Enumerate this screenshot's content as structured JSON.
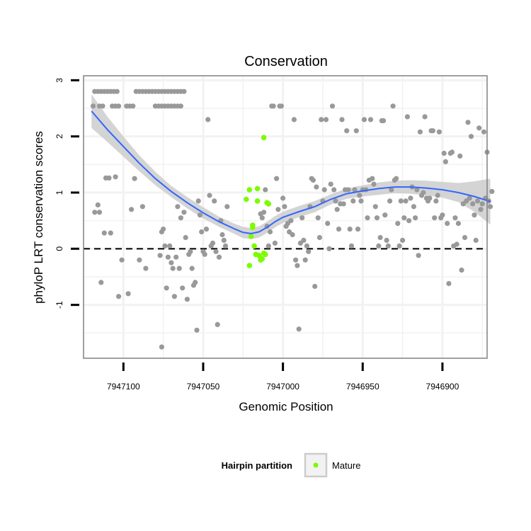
{
  "chart_data": {
    "type": "scatter",
    "title": "Conservation",
    "xlabel": "Genomic Position",
    "ylabel": "phyloP LRT conservation scores",
    "x_reversed": true,
    "xlim": [
      7947125,
      7946872
    ],
    "ylim": [
      -1.95,
      3.08
    ],
    "x_ticks": [
      7947100,
      7947050,
      7947000,
      7946950,
      7946900
    ],
    "x_tick_labels": [
      "7947100",
      "7947050",
      "7947000",
      "7946950",
      "7946900"
    ],
    "y_ticks": [
      -1,
      0,
      1,
      2,
      3
    ],
    "y_tick_labels": [
      "-1",
      "0",
      "1",
      "2",
      "3"
    ],
    "reference_line": {
      "y": 0,
      "style": "dashed",
      "color": "#000000"
    },
    "grid": true,
    "legend": {
      "title": "Hairpin partition",
      "placement": "bottom",
      "entries": [
        {
          "label": "Mature",
          "color": "#7cfc00"
        }
      ]
    },
    "colors": {
      "background_points": "#999999",
      "mature": "#7cfc00",
      "smooth_line": "#3366ff",
      "confidence_band": "#cccccc",
      "panel_grid": "#f2f2f2",
      "panel_border": "#808080"
    },
    "series": [
      {
        "points": [
          [
            7947118,
            2.8
          ],
          [
            7947116,
            2.8
          ],
          [
            7947114,
            2.8
          ],
          [
            7947112,
            2.8
          ],
          [
            7947110,
            2.8
          ],
          [
            7947108,
            2.8
          ],
          [
            7947106,
            2.8
          ],
          [
            7947104,
            2.8
          ],
          [
            7947092,
            2.8
          ],
          [
            7947090,
            2.8
          ],
          [
            7947088,
            2.8
          ],
          [
            7947086,
            2.8
          ],
          [
            7947084,
            2.8
          ],
          [
            7947082,
            2.8
          ],
          [
            7947080,
            2.8
          ],
          [
            7947078,
            2.8
          ],
          [
            7947076,
            2.8
          ],
          [
            7947074,
            2.8
          ],
          [
            7947072,
            2.8
          ],
          [
            7947070,
            2.8
          ],
          [
            7947068,
            2.8
          ],
          [
            7947066,
            2.8
          ],
          [
            7947064,
            2.8
          ],
          [
            7947062,
            2.8
          ],
          [
            7947119,
            2.54
          ],
          [
            7947115,
            2.54
          ],
          [
            7947113,
            2.54
          ],
          [
            7947107,
            2.54
          ],
          [
            7947105,
            2.54
          ],
          [
            7947103,
            2.54
          ],
          [
            7947098,
            2.54
          ],
          [
            7947096,
            2.54
          ],
          [
            7947094,
            2.54
          ],
          [
            7947080,
            2.54
          ],
          [
            7947078,
            2.54
          ],
          [
            7947076,
            2.54
          ],
          [
            7947074,
            2.54
          ],
          [
            7947072,
            2.54
          ],
          [
            7947070,
            2.54
          ],
          [
            7947068,
            2.54
          ],
          [
            7947066,
            2.54
          ],
          [
            7947064,
            2.54
          ],
          [
            7947118,
            0.65
          ],
          [
            7947116,
            0.78
          ],
          [
            7947115,
            0.65
          ],
          [
            7947114,
            -0.6
          ],
          [
            7947112,
            0.28
          ],
          [
            7947111,
            1.26
          ],
          [
            7947109,
            1.26
          ],
          [
            7947108,
            0.28
          ],
          [
            7947105,
            1.28
          ],
          [
            7947103,
            -0.85
          ],
          [
            7947101,
            -0.2
          ],
          [
            7947097,
            -0.8
          ],
          [
            7947095,
            0.7
          ],
          [
            7947093,
            1.25
          ],
          [
            7947090,
            -0.2
          ],
          [
            7947088,
            0.75
          ],
          [
            7947086,
            -0.35
          ],
          [
            7947076,
            0.3
          ],
          [
            7947075,
            0.35
          ],
          [
            7947074,
            0.05
          ],
          [
            7947073,
            -0.7
          ],
          [
            7947072,
            -0.15
          ],
          [
            7947071,
            0.05
          ],
          [
            7947070,
            -0.25
          ],
          [
            7947069,
            -0.35
          ],
          [
            7947068,
            -0.85
          ],
          [
            7947067,
            -0.15
          ],
          [
            7947066,
            0.75
          ],
          [
            7947065,
            -0.35
          ],
          [
            7947064,
            0.55
          ],
          [
            7947063,
            -0.7
          ],
          [
            7947062,
            0.65
          ],
          [
            7947061,
            0.2
          ],
          [
            7947060,
            -0.9
          ],
          [
            7947059,
            -0.1
          ],
          [
            7947058,
            -0.05
          ],
          [
            7947057,
            -0.35
          ],
          [
            7947056,
            -0.65
          ],
          [
            7947055,
            -0.6
          ],
          [
            7947054,
            -1.45
          ],
          [
            7947053,
            0.85
          ],
          [
            7947052,
            0.6
          ],
          [
            7947051,
            0.3
          ],
          [
            7947050,
            -0.05
          ],
          [
            7947049,
            -0.1
          ],
          [
            7947048,
            0.35
          ],
          [
            7947047,
            2.3
          ],
          [
            7947046,
            0.95
          ],
          [
            7947045,
            0.05
          ],
          [
            7947044,
            0.1
          ],
          [
            7947043,
            0.85
          ],
          [
            7947042,
            -0.05
          ],
          [
            7947041,
            -1.35
          ],
          [
            7947040,
            -0.15
          ],
          [
            7947039,
            0.5
          ],
          [
            7947038,
            0.25
          ],
          [
            7947037,
            0.15
          ],
          [
            7947036,
            0.05
          ],
          [
            7947035,
            0.75
          ],
          [
            7947076,
            -1.75
          ],
          [
            7947077,
            -0.12
          ],
          [
            7947014,
            0.62
          ],
          [
            7947013,
            0.55
          ],
          [
            7947012,
            0.65
          ],
          [
            7947011,
            1.05
          ],
          [
            7947010,
            0.4
          ],
          [
            7947009,
            0.05
          ],
          [
            7947008,
            0.3
          ],
          [
            7947007,
            2.54
          ],
          [
            7947006,
            2.54
          ],
          [
            7947005,
            0.1
          ],
          [
            7947004,
            1.25
          ],
          [
            7947003,
            0.7
          ],
          [
            7947002,
            2.54
          ],
          [
            7947001,
            2.54
          ],
          [
            7947000,
            0.9
          ],
          [
            7946999,
            0.75
          ],
          [
            7946998,
            0.4
          ],
          [
            7946997,
            0.45
          ],
          [
            7946996,
            0.3
          ],
          [
            7946995,
            0.5
          ],
          [
            7946994,
            0.25
          ],
          [
            7946993,
            2.3
          ],
          [
            7946992,
            -0.2
          ],
          [
            7946991,
            -0.3
          ],
          [
            7946990,
            -1.43
          ],
          [
            7946989,
            0.1
          ],
          [
            7946988,
            0.55
          ],
          [
            7946987,
            0.15
          ],
          [
            7946986,
            -0.2
          ],
          [
            7946985,
            0.05
          ],
          [
            7946984,
            -0.05
          ],
          [
            7946983,
            0.75
          ],
          [
            7946982,
            1.25
          ],
          [
            7946981,
            1.22
          ],
          [
            7946980,
            -0.67
          ],
          [
            7946979,
            1.1
          ],
          [
            7946978,
            0.55
          ],
          [
            7946977,
            0.2
          ],
          [
            7946976,
            2.3
          ],
          [
            7946975,
            0.85
          ],
          [
            7946974,
            1.05
          ],
          [
            7946973,
            2.3
          ],
          [
            7946972,
            0.45
          ],
          [
            7946971,
            0.0
          ],
          [
            7946970,
            1.15
          ],
          [
            7946969,
            2.54
          ],
          [
            7946968,
            1.05
          ],
          [
            7946967,
            0.85
          ],
          [
            7946966,
            0.7
          ],
          [
            7946965,
            0.35
          ],
          [
            7946964,
            0.8
          ],
          [
            7946963,
            2.3
          ],
          [
            7946962,
            0.8
          ],
          [
            7946961,
            1.05
          ],
          [
            7946960,
            2.1
          ],
          [
            7946959,
            1.05
          ],
          [
            7946958,
            0.35
          ],
          [
            7946957,
            0.05
          ],
          [
            7946956,
            0.85
          ],
          [
            7946955,
            1.05
          ],
          [
            7946954,
            2.1
          ],
          [
            7946953,
            0.35
          ],
          [
            7946952,
            0.95
          ],
          [
            7946951,
            0.85
          ],
          [
            7946950,
            1.05
          ],
          [
            7946949,
            2.3
          ],
          [
            7946948,
            1.05
          ],
          [
            7946947,
            0.55
          ],
          [
            7946946,
            1.22
          ],
          [
            7946945,
            2.3
          ],
          [
            7946944,
            1.25
          ],
          [
            7946943,
            1.15
          ],
          [
            7946942,
            0.75
          ],
          [
            7946941,
            0.55
          ],
          [
            7946940,
            0.05
          ],
          [
            7946939,
            0.2
          ],
          [
            7946938,
            2.28
          ],
          [
            7946937,
            2.28
          ],
          [
            7946936,
            0.6
          ],
          [
            7946935,
            0.15
          ],
          [
            7946934,
            0.05
          ],
          [
            7946933,
            0.85
          ],
          [
            7946932,
            1.05
          ],
          [
            7946931,
            2.54
          ],
          [
            7946930,
            1.22
          ],
          [
            7946929,
            1.25
          ],
          [
            7946928,
            0.45
          ],
          [
            7946927,
            0.05
          ],
          [
            7946926,
            0.85
          ],
          [
            7946925,
            0.15
          ],
          [
            7946924,
            0.55
          ],
          [
            7946923,
            0.85
          ],
          [
            7946922,
            2.35
          ],
          [
            7946921,
            0.5
          ],
          [
            7946920,
            0.9
          ],
          [
            7946919,
            1.1
          ],
          [
            7946918,
            0.75
          ],
          [
            7946917,
            0.55
          ],
          [
            7946916,
            1.05
          ],
          [
            7946915,
            -0.12
          ],
          [
            7946914,
            2.08
          ],
          [
            7946913,
            0.95
          ],
          [
            7946912,
            1.0
          ],
          [
            7946911,
            2.35
          ],
          [
            7946910,
            0.9
          ],
          [
            7946909,
            0.85
          ],
          [
            7946908,
            0.9
          ],
          [
            7946907,
            2.1
          ],
          [
            7946906,
            2.1
          ],
          [
            7946905,
            0.55
          ],
          [
            7946904,
            0.85
          ],
          [
            7946903,
            0.95
          ],
          [
            7946902,
            2.08
          ],
          [
            7946901,
            0.55
          ],
          [
            7946900,
            0.6
          ],
          [
            7946899,
            1.7
          ],
          [
            7946898,
            1.55
          ],
          [
            7946897,
            0.45
          ],
          [
            7946896,
            -0.62
          ],
          [
            7946895,
            1.7
          ],
          [
            7946894,
            1.72
          ],
          [
            7946893,
            0.05
          ],
          [
            7946892,
            0.55
          ],
          [
            7946891,
            0.08
          ],
          [
            7946890,
            0.45
          ],
          [
            7946889,
            1.65
          ],
          [
            7946888,
            -0.38
          ],
          [
            7946887,
            0.8
          ],
          [
            7946886,
            0.2
          ],
          [
            7946885,
            0.85
          ],
          [
            7946884,
            2.25
          ],
          [
            7946883,
            0.9
          ],
          [
            7946882,
            2.0
          ],
          [
            7946881,
            0.8
          ],
          [
            7946880,
            0.6
          ],
          [
            7946879,
            0.15
          ],
          [
            7946878,
            0.85
          ],
          [
            7946877,
            2.15
          ],
          [
            7946876,
            0.7
          ],
          [
            7946875,
            0.8
          ],
          [
            7946874,
            2.08
          ],
          [
            7946873,
            0.9
          ],
          [
            7946872,
            1.72
          ],
          [
            7946871,
            0.85
          ],
          [
            7946870,
            0.75
          ],
          [
            7946869,
            1.02
          ]
        ]
      },
      {
        "name": "Mature",
        "points": [
          [
            7947023,
            0.88
          ],
          [
            7947021,
            1.05
          ],
          [
            7947020,
            0.22
          ],
          [
            7947021,
            -0.3
          ],
          [
            7947019,
            0.42
          ],
          [
            7947019,
            0.38
          ],
          [
            7947018,
            0.05
          ],
          [
            7947017,
            -0.1
          ],
          [
            7947016,
            1.07
          ],
          [
            7947016,
            0.85
          ],
          [
            7947015,
            -0.12
          ],
          [
            7947014,
            -0.2
          ],
          [
            7947013,
            -0.18
          ],
          [
            7947012,
            -0.08
          ],
          [
            7947012,
            1.98
          ],
          [
            7947011,
            -0.1
          ],
          [
            7947010,
            0.82
          ],
          [
            7947009,
            0.8
          ]
        ]
      }
    ],
    "smooth": {
      "x": [
        7947120,
        7947110,
        7947100,
        7947090,
        7947080,
        7947070,
        7947060,
        7947050,
        7947040,
        7947030,
        7947025,
        7947020,
        7947015,
        7947010,
        7947005,
        7947000,
        7946990,
        7946980,
        7946970,
        7946960,
        7946950,
        7946940,
        7946930,
        7946920,
        7946910,
        7946900,
        7946890,
        7946880,
        7946870
      ],
      "y": [
        2.45,
        2.12,
        1.82,
        1.52,
        1.25,
        1.02,
        0.82,
        0.64,
        0.48,
        0.35,
        0.29,
        0.27,
        0.3,
        0.38,
        0.48,
        0.56,
        0.66,
        0.75,
        0.88,
        0.98,
        1.03,
        1.07,
        1.1,
        1.1,
        1.08,
        1.05,
        1.0,
        0.93,
        0.84
      ],
      "upper": [
        2.75,
        2.35,
        2.0,
        1.66,
        1.37,
        1.12,
        0.92,
        0.74,
        0.57,
        0.44,
        0.39,
        0.37,
        0.4,
        0.48,
        0.58,
        0.66,
        0.76,
        0.85,
        0.97,
        1.07,
        1.13,
        1.18,
        1.21,
        1.22,
        1.21,
        1.19,
        1.17,
        1.2,
        1.25
      ],
      "lower": [
        2.15,
        1.9,
        1.64,
        1.38,
        1.13,
        0.92,
        0.72,
        0.54,
        0.39,
        0.26,
        0.19,
        0.17,
        0.2,
        0.28,
        0.38,
        0.46,
        0.56,
        0.65,
        0.79,
        0.89,
        0.93,
        0.96,
        0.99,
        0.98,
        0.95,
        0.91,
        0.83,
        0.66,
        0.43
      ]
    }
  }
}
